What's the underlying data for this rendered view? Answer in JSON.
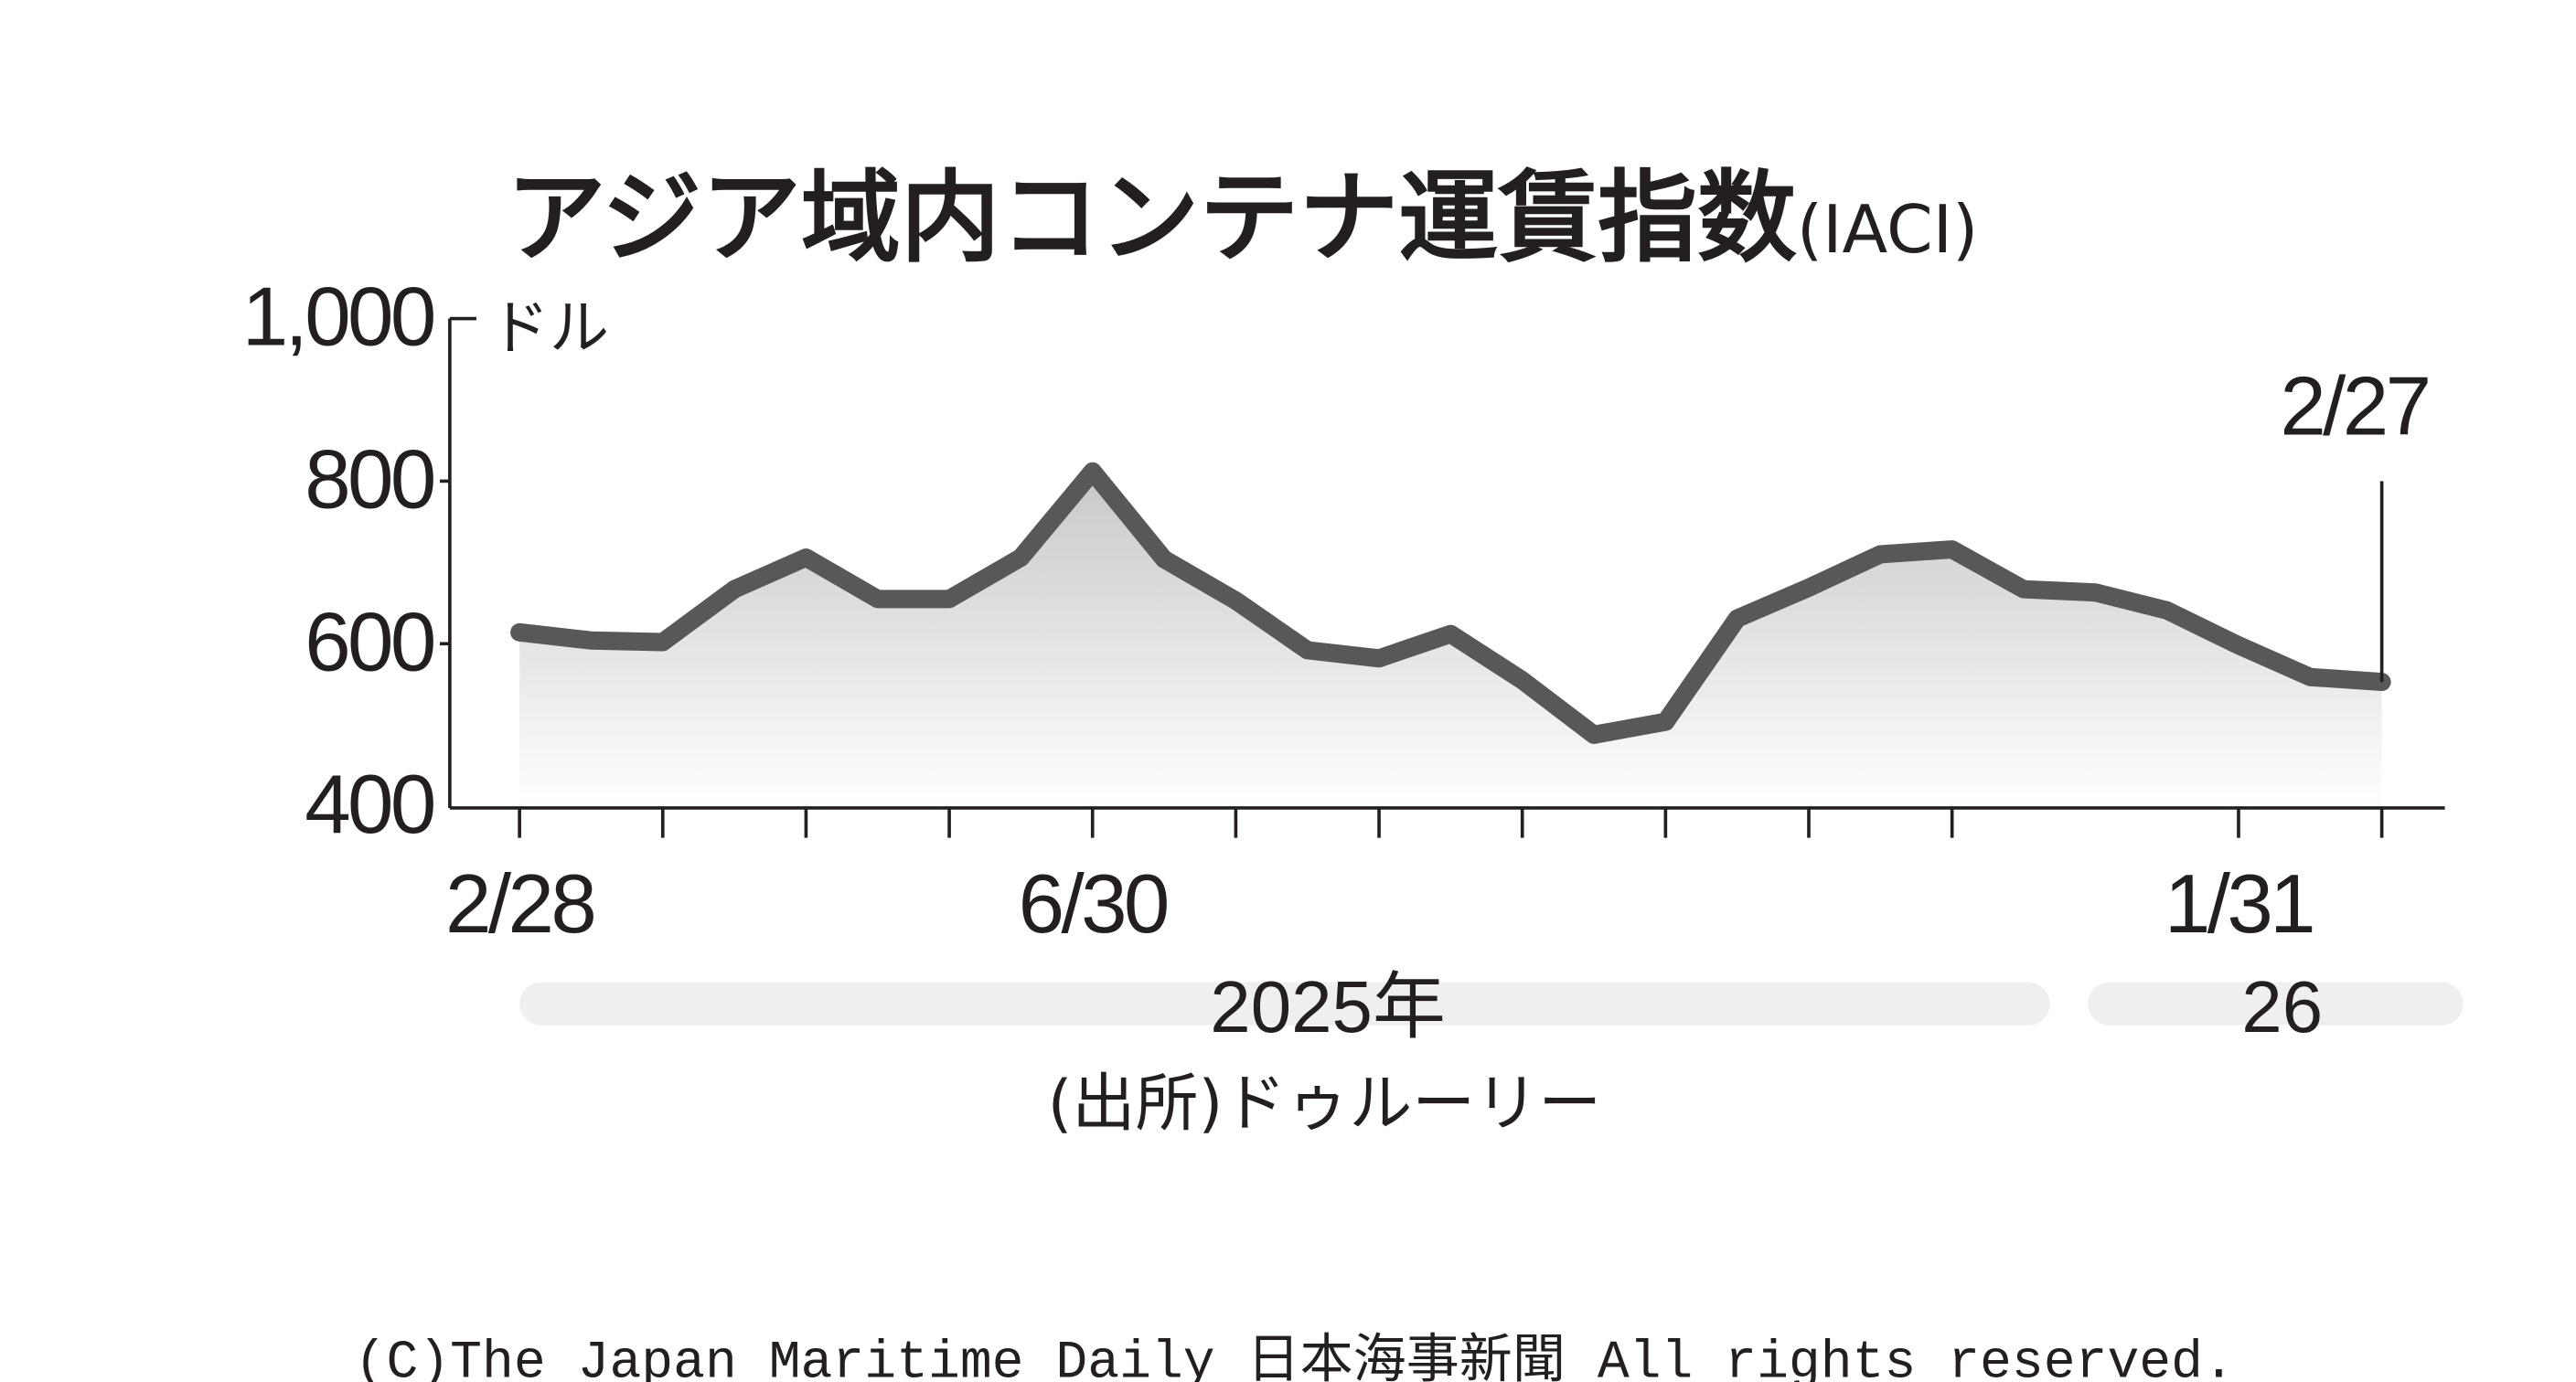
{
  "chart_data": {
    "type": "line",
    "title": "アジア域内コンテナ運賃指数",
    "title_suffix": "(IACI)",
    "y_unit": "ドル",
    "categories": [
      "2/28",
      null,
      null,
      null,
      null,
      null,
      null,
      null,
      "6/30",
      null,
      null,
      null,
      null,
      null,
      null,
      null,
      null,
      null,
      null,
      null,
      null,
      null,
      null,
      null,
      "1/31",
      null,
      null
    ],
    "series": [
      {
        "name": "IACI",
        "color": "#58585a",
        "values": [
          614,
          604,
          602,
          667,
          706,
          655,
          655,
          706,
          812,
          704,
          653,
          592,
          582,
          612,
          555,
          488,
          504,
          631,
          669,
          710,
          716,
          667,
          663,
          641,
          598,
          559,
          553
        ]
      }
    ],
    "ylim": [
      400,
      1000
    ],
    "yticks": [
      400,
      600,
      800,
      {
        "value": 1000,
        "label": "1,000"
      }
    ],
    "annotation": "2/27",
    "year_labels": [
      "2025年",
      "26"
    ],
    "source": "(出所)ドゥルーリー",
    "copyright": "(C)The Japan Maritime Daily 日本海事新聞 All rights reserved."
  }
}
